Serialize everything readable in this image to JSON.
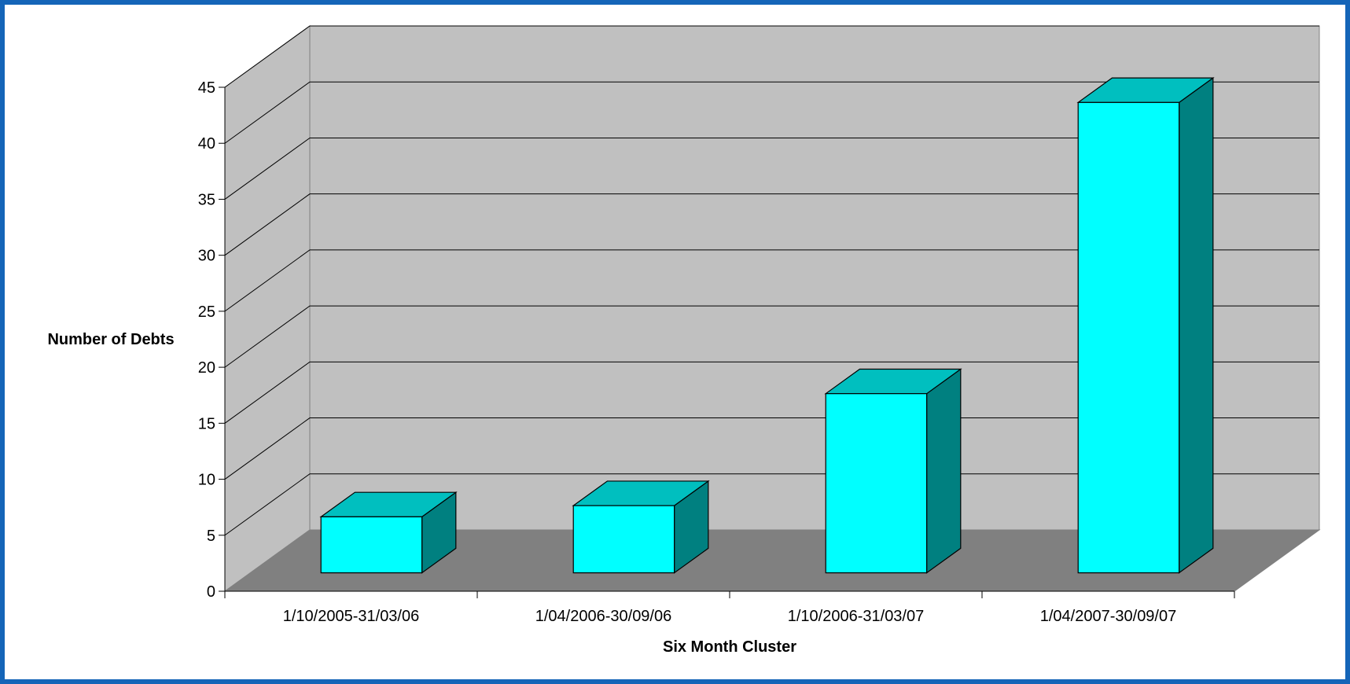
{
  "chart_data": {
    "type": "bar",
    "style": "3d",
    "categories": [
      "1/10/2005-31/03/06",
      "1/04/2006-30/09/06",
      "1/10/2006-31/03/07",
      "1/04/2007-30/09/07"
    ],
    "series": [
      {
        "values": [
          5,
          6,
          16,
          42
        ]
      }
    ],
    "xlabel": "Six Month Cluster",
    "ylabel": "Number of Debts",
    "ylim": [
      0,
      45
    ],
    "yticks": [
      0,
      5,
      10,
      15,
      20,
      25,
      30,
      35,
      40,
      45
    ],
    "grid": true,
    "legend": "none",
    "colors": {
      "bar_front": "#00ffff",
      "bar_top": "#00bfbf",
      "bar_side": "#008080",
      "back_wall": "#c0c0c0",
      "side_wall": "#c0c0c0",
      "floor": "#808080",
      "background": "#ffffff",
      "frame": "#1565b8"
    }
  }
}
